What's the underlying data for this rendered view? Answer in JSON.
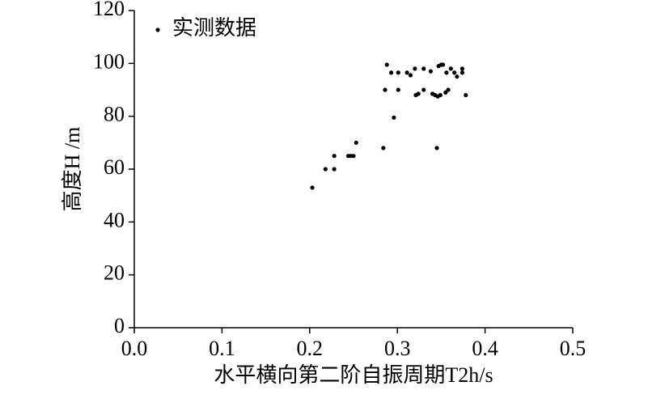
{
  "chart_data": {
    "type": "scatter",
    "x_label": "水平横向第二阶自振周期T2h/s",
    "y_label": "高度H /m",
    "series": [
      {
        "name": "实测数据",
        "color": "#000000",
        "x": [
          0.203,
          0.218,
          0.228,
          0.228,
          0.244,
          0.247,
          0.25,
          0.253,
          0.284,
          0.288,
          0.286,
          0.293,
          0.296,
          0.301,
          0.301,
          0.311,
          0.315,
          0.32,
          0.321,
          0.324,
          0.33,
          0.33,
          0.338,
          0.34,
          0.343,
          0.346,
          0.349,
          0.345,
          0.347,
          0.35,
          0.352,
          0.356,
          0.355,
          0.358,
          0.361,
          0.365,
          0.368,
          0.374,
          0.374,
          0.378
        ],
        "values": [
          53,
          60,
          60,
          65,
          65,
          65,
          65,
          70,
          68,
          99.5,
          90,
          96.5,
          79.5,
          96.5,
          90,
          96.5,
          95.5,
          98,
          88,
          88.5,
          98,
          90,
          97,
          88.5,
          88,
          87.5,
          88,
          68,
          99,
          99.5,
          99.5,
          96.5,
          89,
          90,
          98,
          96.5,
          95,
          98,
          96.5,
          88
        ]
      }
    ],
    "xlim": [
      0,
      0.5
    ],
    "xticks": [
      {
        "value": 0,
        "label": "0.0"
      },
      0.1,
      0.2,
      0.3,
      0.4,
      0.5
    ],
    "ylim": [
      0,
      120
    ],
    "yticks": [
      0,
      20,
      40,
      60,
      80,
      100,
      120
    ],
    "grid": false,
    "legend": "upper-left"
  }
}
